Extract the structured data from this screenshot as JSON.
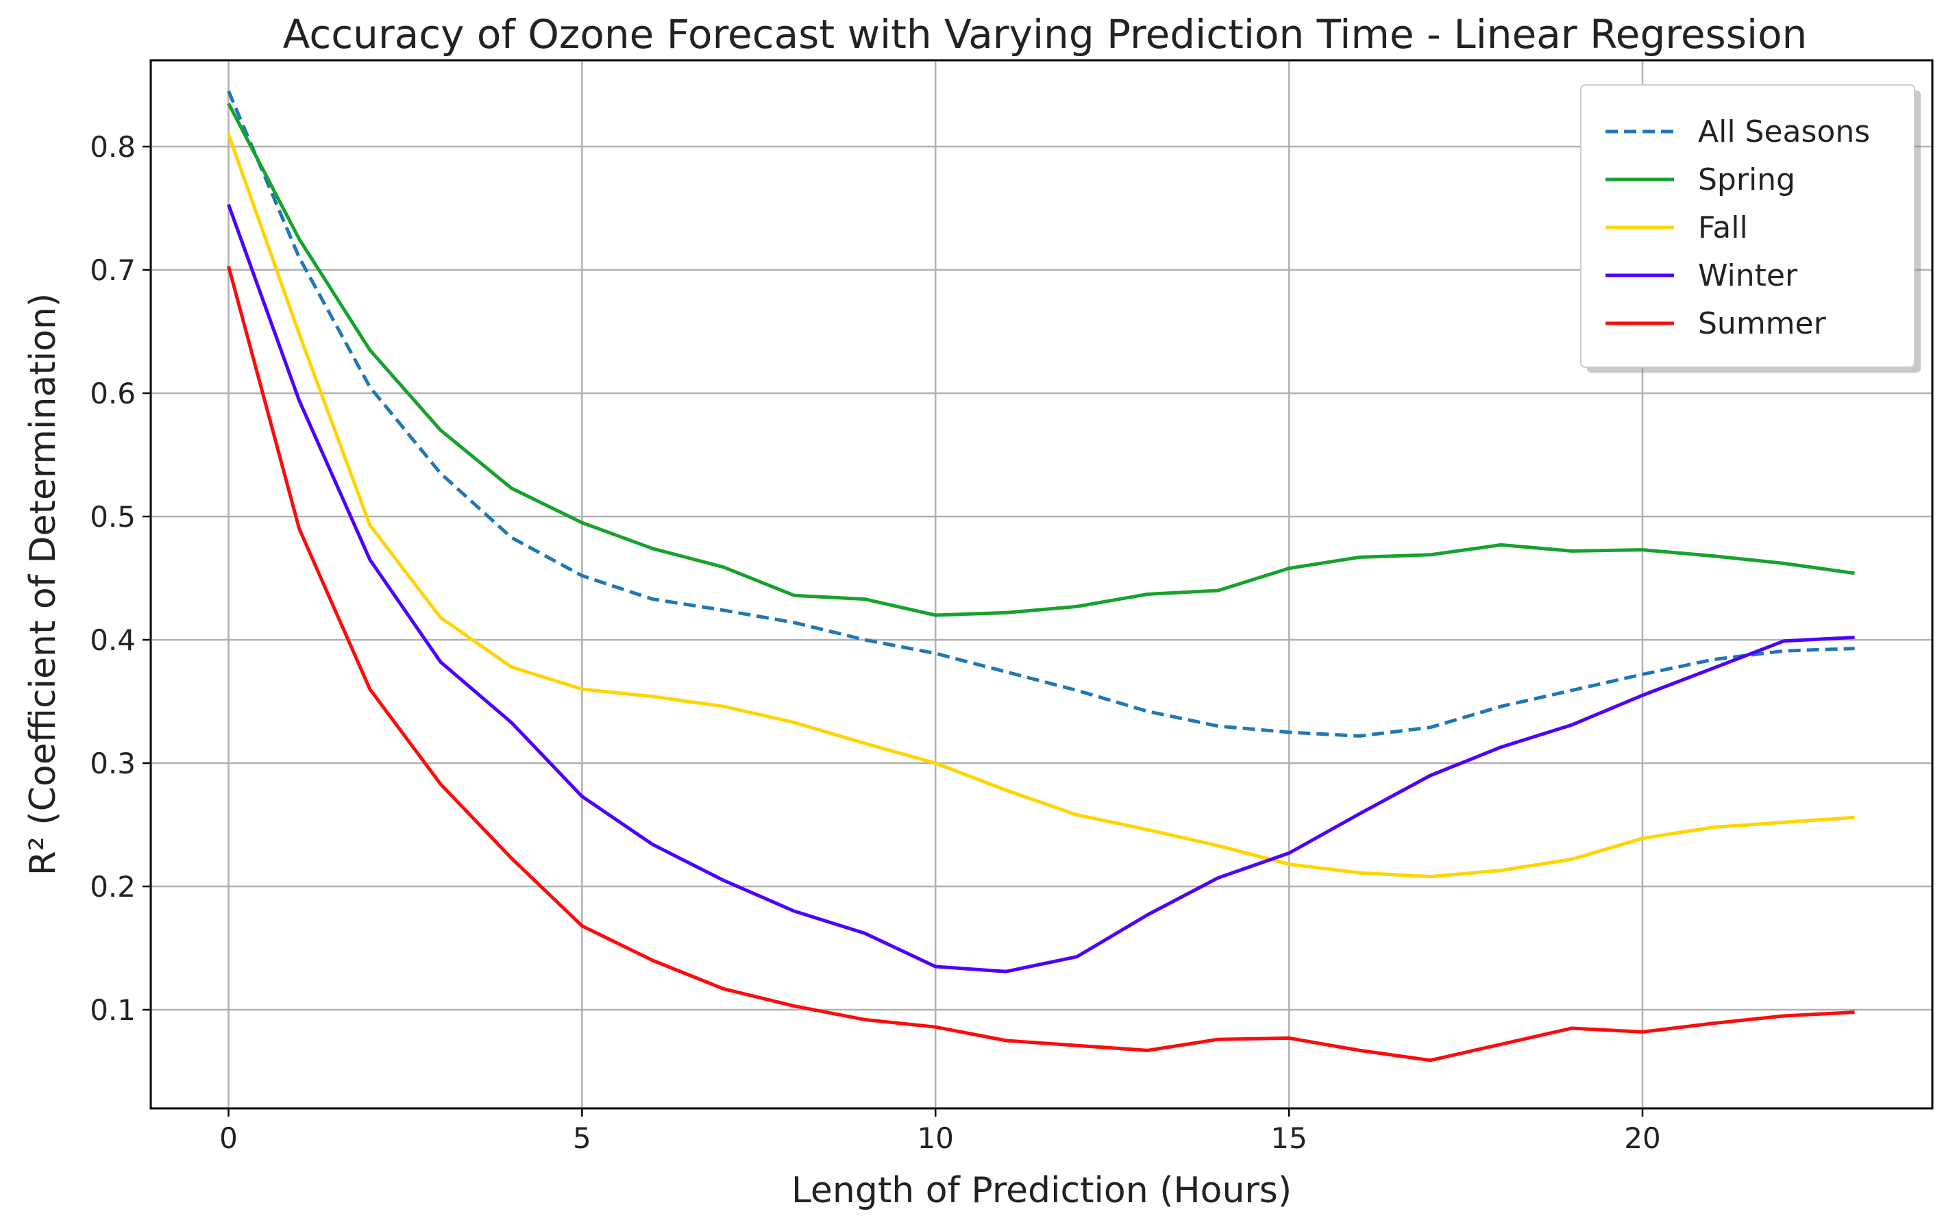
{
  "chart_data": {
    "type": "line",
    "title": "Accuracy of Ozone Forecast with Varying Prediction Time - Linear Regression",
    "xlabel": "Length of Prediction (Hours)",
    "ylabel": "R² (Coefficient of Determination)",
    "xlim": [
      -1.1,
      24.1
    ],
    "ylim": [
      0.02,
      0.87
    ],
    "xticks": [
      0,
      5,
      10,
      15,
      20
    ],
    "yticks": [
      0.1,
      0.2,
      0.3,
      0.4,
      0.5,
      0.6,
      0.7,
      0.8
    ],
    "x": [
      0,
      1,
      2,
      3,
      4,
      5,
      6,
      7,
      8,
      9,
      10,
      11,
      12,
      13,
      14,
      15,
      16,
      17,
      18,
      19,
      20,
      21,
      22,
      23
    ],
    "grid": true,
    "legend_position": "top-right",
    "series": [
      {
        "name": "All Seasons",
        "color": "#1f77b4",
        "style": "dashed",
        "values": [
          0.845,
          0.71,
          0.605,
          0.535,
          0.483,
          0.452,
          0.433,
          0.424,
          0.414,
          0.4,
          0.389,
          0.374,
          0.359,
          0.342,
          0.33,
          0.325,
          0.322,
          0.329,
          0.346,
          0.359,
          0.372,
          0.384,
          0.391,
          0.393
        ]
      },
      {
        "name": "Spring",
        "color": "#16a22c",
        "style": "solid",
        "values": [
          0.835,
          0.725,
          0.635,
          0.57,
          0.523,
          0.495,
          0.474,
          0.459,
          0.436,
          0.433,
          0.42,
          0.422,
          0.427,
          0.437,
          0.44,
          0.458,
          0.467,
          0.469,
          0.477,
          0.472,
          0.473,
          0.468,
          0.462,
          0.454
        ]
      },
      {
        "name": "Fall",
        "color": "#ffd400",
        "style": "solid",
        "values": [
          0.81,
          0.648,
          0.493,
          0.418,
          0.378,
          0.36,
          0.354,
          0.346,
          0.333,
          0.316,
          0.3,
          0.278,
          0.258,
          0.246,
          0.233,
          0.218,
          0.211,
          0.208,
          0.213,
          0.222,
          0.239,
          0.248,
          0.252,
          0.256
        ]
      },
      {
        "name": "Winter",
        "color": "#4c00ff",
        "style": "solid",
        "values": [
          0.753,
          0.594,
          0.465,
          0.382,
          0.333,
          0.273,
          0.234,
          0.205,
          0.18,
          0.162,
          0.135,
          0.131,
          0.143,
          0.177,
          0.207,
          0.227,
          0.259,
          0.29,
          0.313,
          0.331,
          0.355,
          0.377,
          0.399,
          0.402
        ]
      },
      {
        "name": "Summer",
        "color": "#ff0a0a",
        "style": "solid",
        "values": [
          0.703,
          0.49,
          0.36,
          0.283,
          0.223,
          0.168,
          0.14,
          0.117,
          0.103,
          0.092,
          0.086,
          0.075,
          0.071,
          0.067,
          0.076,
          0.077,
          0.067,
          0.059,
          0.072,
          0.085,
          0.082,
          0.089,
          0.095,
          0.098
        ]
      }
    ]
  }
}
